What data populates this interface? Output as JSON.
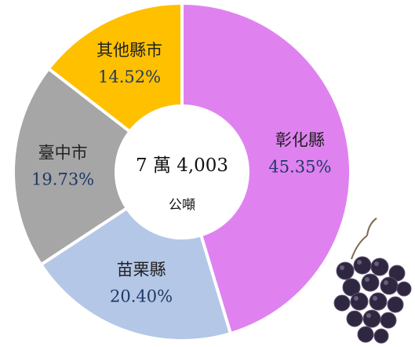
{
  "chart_data": {
    "type": "pie",
    "categories": [
      "彰化縣",
      "苗栗縣",
      "臺中市",
      "其他縣市"
    ],
    "values": [
      45.35,
      20.4,
      19.73,
      14.52
    ],
    "value_labels": [
      "45.35%",
      "20.40%",
      "19.73%",
      "14.52%"
    ],
    "colors": [
      "#df82f0",
      "#b4c7e7",
      "#a6a6a6",
      "#ffc000"
    ],
    "annotations": [
      "7 萬 4,003",
      "公噸"
    ]
  }
}
